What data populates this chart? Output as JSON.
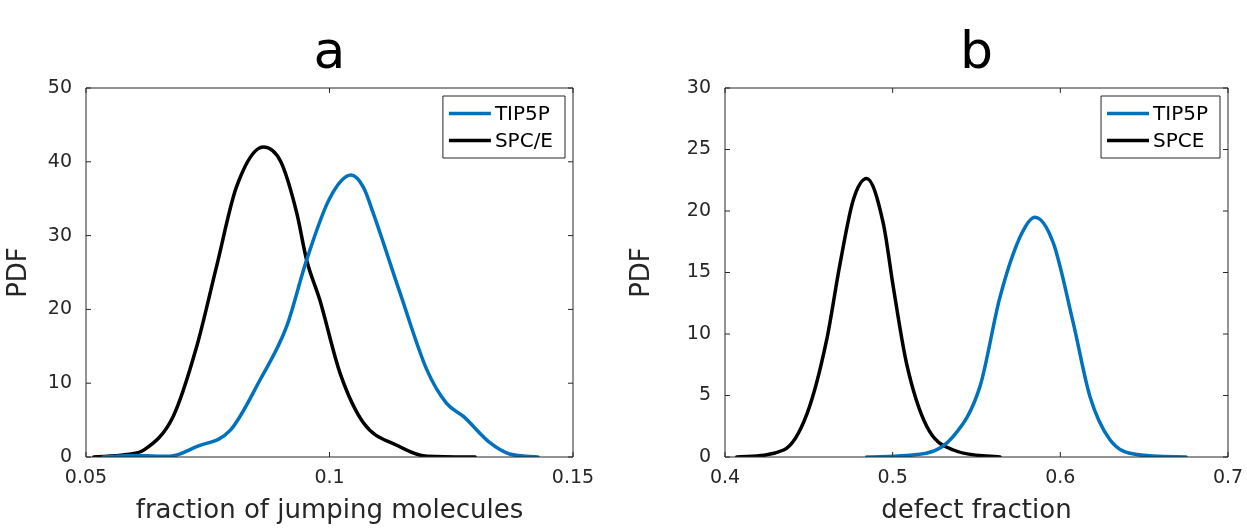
{
  "chart_data": [
    {
      "type": "line",
      "title": "a",
      "xlabel": "fraction of jumping molecules",
      "ylabel": "PDF",
      "xlim": [
        0.05,
        0.15
      ],
      "xticks": [
        0.05,
        0.1,
        0.15
      ],
      "ylim": [
        0,
        50
      ],
      "yticks": [
        0,
        10,
        20,
        30,
        40,
        50
      ],
      "grid": false,
      "legend": "top right",
      "marker": "none",
      "line_style": "solid",
      "series": [
        {
          "name": "TIP5P",
          "color": "#0072bd",
          "x": [
            0.0535,
            0.06,
            0.0672,
            0.0727,
            0.0796,
            0.0857,
            0.0912,
            0.0953,
            0.1,
            0.1044,
            0.107,
            0.109,
            0.1145,
            0.12,
            0.124,
            0.1275,
            0.133,
            0.137,
            0.1428
          ],
          "values": [
            0,
            0.2,
            0.1,
            1.4,
            3.6,
            10.4,
            17.7,
            26.7,
            35,
            38.2,
            36.5,
            33,
            22.2,
            11.8,
            7.3,
            5.5,
            1.9,
            0.4,
            0
          ]
        },
        {
          "name": "SPC/E",
          "color": "#000000",
          "x": [
            0.0516,
            0.058,
            0.062,
            0.0679,
            0.0727,
            0.0768,
            0.0809,
            0.0864,
            0.09,
            0.0933,
            0.0953,
            0.098,
            0.1022,
            0.107,
            0.1138,
            0.12,
            0.1299
          ],
          "values": [
            0,
            0.3,
            1,
            5.5,
            14.9,
            25.8,
            36.6,
            42,
            40,
            33,
            26.7,
            21.3,
            11.3,
            4.6,
            1.6,
            0.1,
            0
          ]
        }
      ]
    },
    {
      "type": "line",
      "title": "b",
      "xlabel": "defect fraction",
      "ylabel": "PDF",
      "xlim": [
        0.4,
        0.7
      ],
      "xticks": [
        0.4,
        0.5,
        0.6,
        0.7
      ],
      "ylim": [
        0,
        30
      ],
      "yticks": [
        0,
        5,
        10,
        15,
        20,
        25,
        30
      ],
      "grid": false,
      "legend": "top right",
      "marker": "none",
      "line_style": "solid",
      "series": [
        {
          "name": "TIP5P",
          "color": "#0072bd",
          "x": [
            0.4845,
            0.52,
            0.536,
            0.552,
            0.564,
            0.576,
            0.5849,
            0.5958,
            0.6077,
            0.6177,
            0.6296,
            0.6455,
            0.675
          ],
          "values": [
            0,
            0.3,
            1.65,
            5.7,
            13,
            17.9,
            19.5,
            17.4,
            10.9,
            4.9,
            1.4,
            0.2,
            0
          ]
        },
        {
          "name": "SPCE",
          "color": "#000000",
          "x": [
            0.407,
            0.435,
            0.449,
            0.4606,
            0.4686,
            0.4765,
            0.4845,
            0.4944,
            0.5004,
            0.5083,
            0.5203,
            0.5362,
            0.564
          ],
          "values": [
            0,
            0.57,
            3.55,
            9.5,
            15.7,
            20.9,
            22.65,
            19,
            13.8,
            7.6,
            2.5,
            0.57,
            0
          ]
        }
      ]
    }
  ]
}
